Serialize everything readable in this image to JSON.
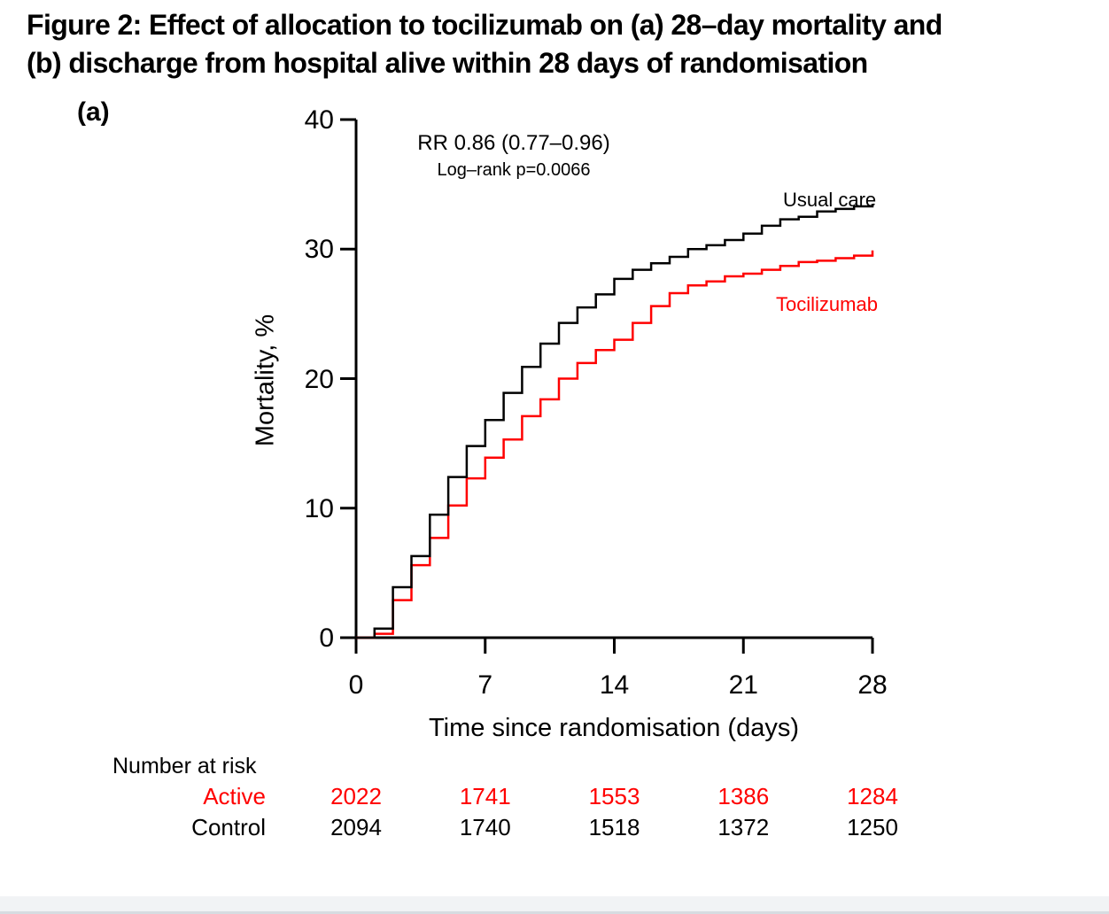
{
  "figure": {
    "title_line1": "Figure 2: Effect of allocation to tocilizumab on (a) 28–day mortality and",
    "title_line2": "(b) discharge from hospital alive within 28 days of randomisation",
    "panel_label": "(a)"
  },
  "annotation": {
    "risk_ratio": "RR 0.86 (0.77–0.96)",
    "logrank": "Log–rank p=0.0066"
  },
  "chart_data": {
    "type": "line",
    "subtype": "kaplan-meier-step",
    "title": "",
    "xlabel": "Time since randomisation (days)",
    "ylabel": "Mortality, %",
    "xlim": [
      0,
      28
    ],
    "ylim": [
      0,
      40
    ],
    "xticks": [
      "0",
      "7",
      "14",
      "21",
      "28"
    ],
    "xtick_values": [
      0,
      7,
      14,
      21,
      28
    ],
    "yticks": [
      "0",
      "10",
      "20",
      "30",
      "40"
    ],
    "ytick_values": [
      0,
      10,
      20,
      30,
      40
    ],
    "grid": "off",
    "legend_position": "labels-on-plot",
    "days": [
      0,
      1,
      2,
      3,
      4,
      5,
      6,
      7,
      8,
      9,
      10,
      11,
      12,
      13,
      14,
      15,
      16,
      17,
      18,
      19,
      20,
      21,
      22,
      23,
      24,
      25,
      26,
      27,
      28
    ],
    "series": [
      {
        "name": "Tocilizumab",
        "color": "#FF0000",
        "values": [
          0,
          0.3,
          2.9,
          5.6,
          7.7,
          10.2,
          12.3,
          13.9,
          15.3,
          17.1,
          18.4,
          20.0,
          21.2,
          22.2,
          23.0,
          24.3,
          25.6,
          26.6,
          27.2,
          27.5,
          27.9,
          28.1,
          28.4,
          28.7,
          29.0,
          29.1,
          29.3,
          29.5,
          29.9
        ]
      },
      {
        "name": "Usual care",
        "color": "#000000",
        "values": [
          0,
          0.7,
          3.9,
          6.3,
          9.5,
          12.4,
          14.8,
          16.8,
          18.9,
          20.9,
          22.7,
          24.3,
          25.5,
          26.5,
          27.7,
          28.4,
          28.9,
          29.4,
          30.0,
          30.3,
          30.7,
          31.2,
          31.8,
          32.3,
          32.5,
          32.9,
          33.1,
          33.3,
          33.5
        ]
      }
    ]
  },
  "legend": {
    "usual_care": "Usual care",
    "tocilizumab": "Tocilizumab"
  },
  "at_risk": {
    "header": "Number at risk",
    "days": [
      0,
      7,
      14,
      21,
      28
    ],
    "rows": [
      {
        "label": "Active",
        "color": "#FF0000",
        "values": [
          "2022",
          "1741",
          "1553",
          "1386",
          "1284"
        ]
      },
      {
        "label": "Control",
        "color": "#000000",
        "values": [
          "2094",
          "1740",
          "1518",
          "1372",
          "1250"
        ]
      }
    ]
  },
  "colors": {
    "active": "#FF0000",
    "control": "#000000",
    "background": "#FFFFFF"
  }
}
